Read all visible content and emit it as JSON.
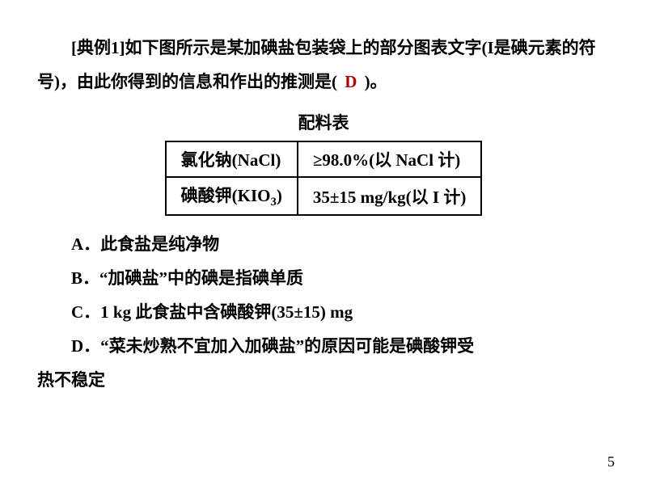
{
  "intro": {
    "label": "[典例1]",
    "part1": "如下图所示是某加碘盐包装袋上的部分图表文字",
    "part2": "(I是碘元素的符号)，由此你得到的信息和作出的推测是",
    "lparen": "(",
    "answer": "D",
    "rparen": ")。"
  },
  "tableTitle": "配料表",
  "table": {
    "r1c1_name": "氯化钠",
    "r1c1_formula": "(NaCl)",
    "r1c2_prefix": "≥98.0%(以 ",
    "r1c2_chem": "NaCl",
    "r1c2_suffix": " 计)",
    "r2c1_name": "碘酸钾",
    "r2c1_formula_a": "(KIO",
    "r2c1_formula_sub": "3",
    "r2c1_formula_b": ")",
    "r2c2_val": "35±15 mg/kg(以 ",
    "r2c2_chem": "I",
    "r2c2_suffix": " 计)"
  },
  "options": {
    "a": "A．此食盐是纯净物",
    "b": "B．“加碘盐”中的碘是指碘单质",
    "c_prefix": "C．",
    "c_num": "1 kg ",
    "c_mid": "此食盐中含碘酸钾",
    "c_val": "(35±15) mg",
    "d_line1": "D．“菜未炒熟不宜加入加碘盐”的原因可能是碘酸钾受",
    "d_line2": "热不稳定"
  },
  "pageNum": "5"
}
